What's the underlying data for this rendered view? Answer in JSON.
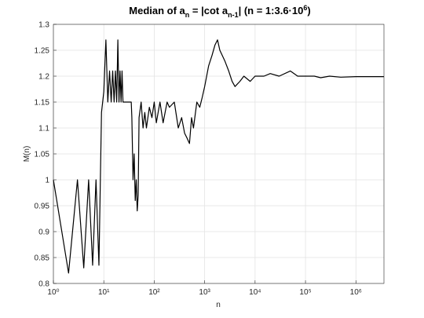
{
  "chart_data": {
    "type": "line",
    "title_parts": [
      {
        "text": "Median of a"
      },
      {
        "text": "n",
        "shift": "sub"
      },
      {
        "text": " = |cot a"
      },
      {
        "text": "n-1",
        "shift": "sub"
      },
      {
        "text": "|   (n = 1:3.6·10"
      },
      {
        "text": "6",
        "shift": "super"
      },
      {
        "text": ")"
      }
    ],
    "xlabel": "n",
    "ylabel": "M(n)",
    "x": [
      1,
      2,
      3,
      4,
      5,
      6,
      7,
      8,
      9,
      10,
      11,
      12,
      13,
      14,
      15,
      16,
      17,
      18,
      19,
      20,
      21,
      22,
      23,
      24,
      25,
      30,
      35,
      36,
      38,
      40,
      42,
      44,
      46,
      48,
      50,
      55,
      60,
      65,
      70,
      80,
      90,
      100,
      110,
      130,
      150,
      180,
      200,
      250,
      300,
      350,
      400,
      450,
      500,
      550,
      600,
      700,
      800,
      900,
      1000,
      1200,
      1400,
      1600,
      1800,
      2000,
      2500,
      3000,
      3500,
      4000,
      5000,
      6000,
      8000,
      10000,
      15000,
      20000,
      30000,
      50000,
      70000,
      100000,
      150000,
      200000,
      300000,
      500000,
      1000000,
      2000000,
      3600000
    ],
    "values": [
      1,
      0.82,
      1,
      0.83,
      1,
      0.835,
      1,
      0.835,
      1.13,
      1.17,
      1.27,
      1.15,
      1.21,
      1.15,
      1.21,
      1.15,
      1.21,
      1.15,
      1.27,
      1.15,
      1.21,
      1.15,
      1.21,
      1.15,
      1.15,
      1.15,
      1.15,
      1.12,
      1,
      1.05,
      0.96,
      1,
      0.94,
      0.97,
      1.12,
      1.15,
      1.1,
      1.13,
      1.1,
      1.14,
      1.12,
      1.15,
      1.11,
      1.15,
      1.11,
      1.15,
      1.14,
      1.15,
      1.1,
      1.12,
      1.09,
      1.08,
      1.07,
      1.12,
      1.1,
      1.15,
      1.14,
      1.16,
      1.18,
      1.22,
      1.24,
      1.26,
      1.27,
      1.25,
      1.23,
      1.21,
      1.19,
      1.18,
      1.19,
      1.2,
      1.19,
      1.2,
      1.2,
      1.205,
      1.2,
      1.21,
      1.2,
      1.2,
      1.2,
      1.197,
      1.2,
      1.198,
      1.199,
      1.199,
      1.199
    ],
    "color": "#000000",
    "xscale": "log",
    "xlim": [
      1,
      3600000
    ],
    "ylim": [
      0.8,
      1.3
    ],
    "xticks": [
      {
        "value": 1,
        "label": "10⁰"
      },
      {
        "value": 10,
        "label": "10¹"
      },
      {
        "value": 100,
        "label": "10²"
      },
      {
        "value": 1000,
        "label": "10³"
      },
      {
        "value": 10000,
        "label": "10⁴"
      },
      {
        "value": 100000,
        "label": "10⁵"
      },
      {
        "value": 1000000,
        "label": "10⁶"
      }
    ],
    "yticks": [
      0.8,
      0.85,
      0.9,
      0.95,
      1,
      1.05,
      1.1,
      1.15,
      1.2,
      1.25,
      1.3
    ],
    "grid": true
  }
}
